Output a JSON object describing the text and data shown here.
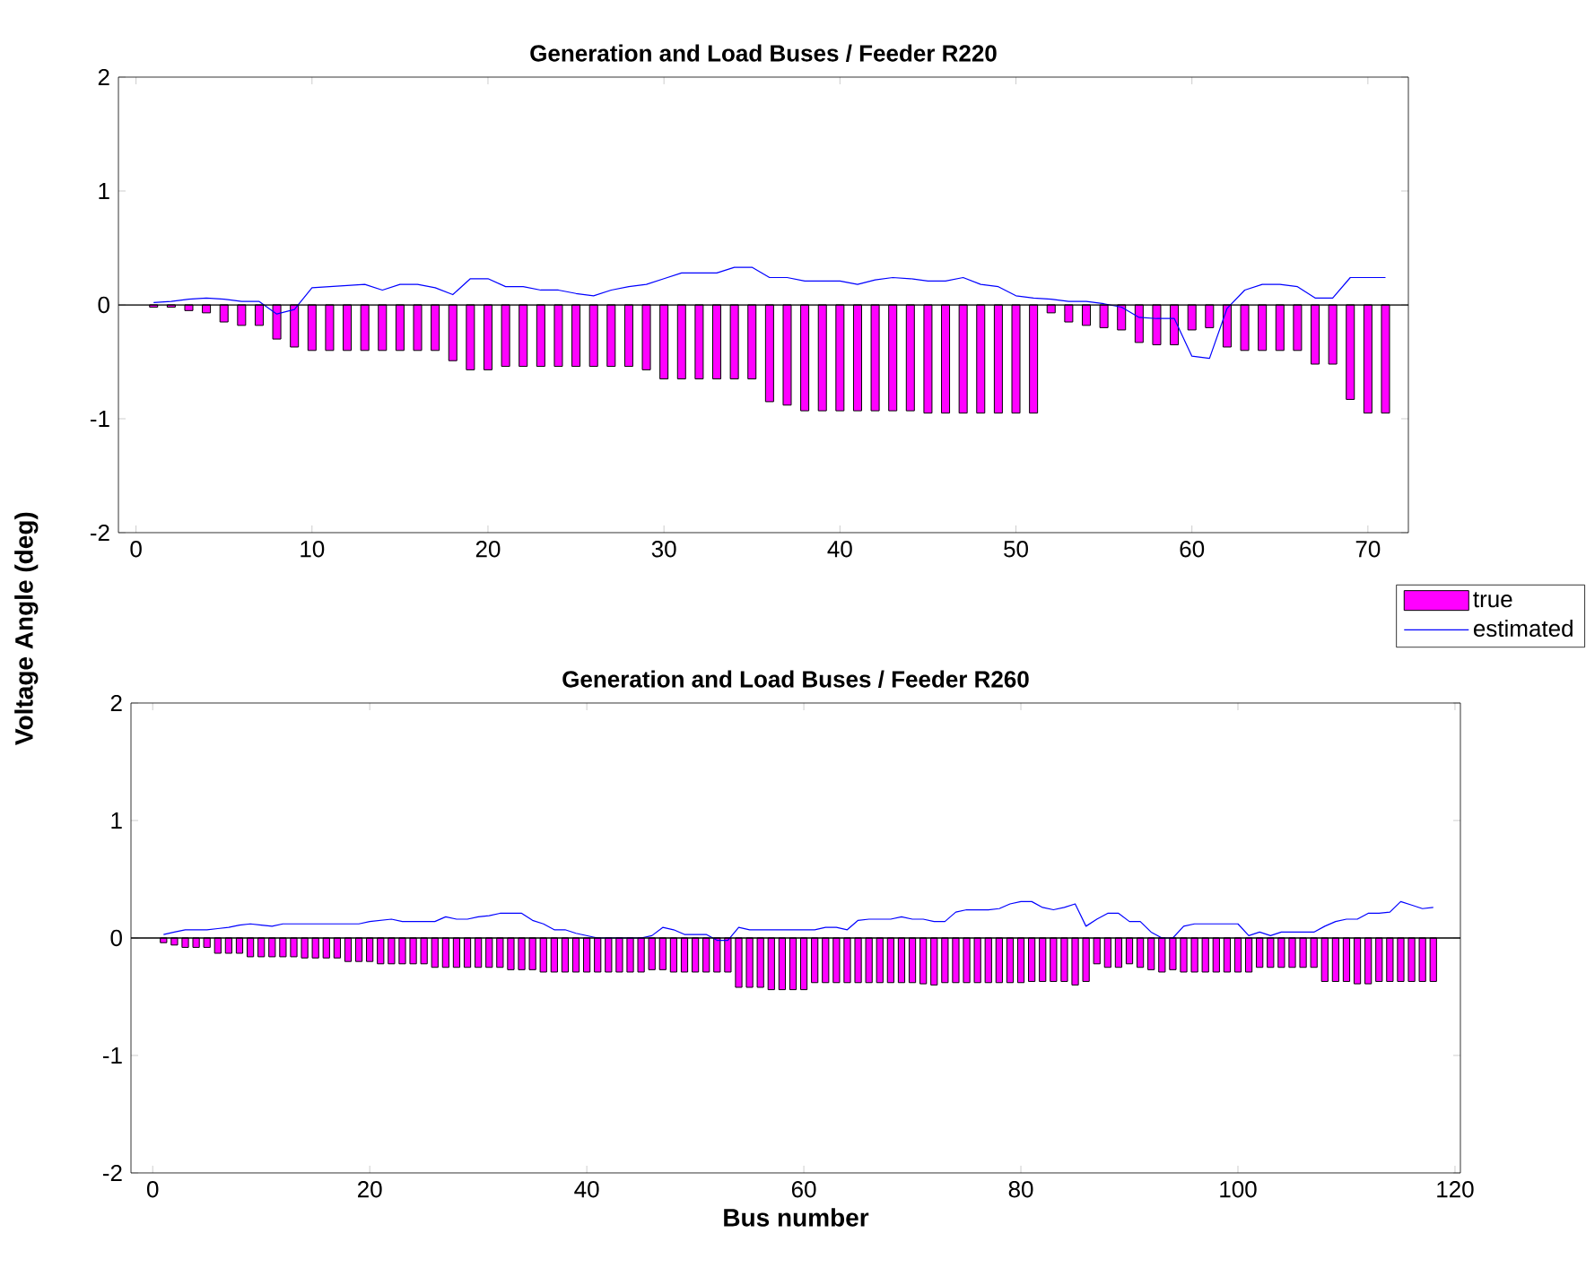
{
  "chart_data": [
    {
      "type": "bar",
      "title": "Generation and Load Buses / Feeder R220",
      "ylabel": "Voltage Angle (deg)",
      "legend": "bottom right",
      "x": [
        1,
        2,
        3,
        4,
        5,
        6,
        7,
        8,
        9,
        10,
        11,
        12,
        13,
        14,
        15,
        16,
        17,
        18,
        19,
        20,
        21,
        22,
        23,
        24,
        25,
        26,
        27,
        28,
        29,
        30,
        31,
        32,
        33,
        34,
        35,
        36,
        37,
        38,
        39,
        40,
        41,
        42,
        43,
        44,
        45,
        46,
        47,
        48,
        49,
        50,
        51,
        52,
        53,
        54,
        55,
        56,
        57,
        58,
        59,
        60,
        61,
        62,
        63,
        64,
        65,
        66,
        67,
        68,
        69,
        70,
        71
      ],
      "xlim": [
        -1,
        72.3
      ],
      "ylim": [
        -2,
        2
      ],
      "xticks": [
        0,
        10,
        20,
        30,
        40,
        50,
        60,
        70
      ],
      "yticks": [
        -2,
        -1,
        0,
        1,
        2
      ],
      "ref_lines": [
        {
          "axis": "y",
          "value": 0,
          "color": "#000000"
        }
      ],
      "series": [
        {
          "name": "true",
          "color": "#ff00ff",
          "values": [
            -0.02,
            -0.02,
            -0.05,
            -0.07,
            -0.15,
            -0.18,
            -0.18,
            -0.3,
            -0.37,
            -0.4,
            -0.4,
            -0.4,
            -0.4,
            -0.4,
            -0.4,
            -0.4,
            -0.4,
            -0.49,
            -0.57,
            -0.57,
            -0.54,
            -0.54,
            -0.54,
            -0.54,
            -0.54,
            -0.54,
            -0.54,
            -0.54,
            -0.57,
            -0.65,
            -0.65,
            -0.65,
            -0.65,
            -0.65,
            -0.65,
            -0.85,
            -0.88,
            -0.93,
            -0.93,
            -0.93,
            -0.93,
            -0.93,
            -0.93,
            -0.93,
            -0.95,
            -0.95,
            -0.95,
            -0.95,
            -0.95,
            -0.95,
            -0.95,
            -0.07,
            -0.15,
            -0.18,
            -0.2,
            -0.22,
            -0.33,
            -0.35,
            -0.35,
            -0.22,
            -0.2,
            -0.37,
            -0.4,
            -0.4,
            -0.4,
            -0.4,
            -0.52,
            -0.52,
            -0.83,
            -0.95,
            -0.95
          ]
        },
        {
          "name": "estimated",
          "type": "line",
          "color": "#0000ff",
          "marker": "none",
          "line_style": "solid",
          "values": [
            0.02,
            0.03,
            0.05,
            0.06,
            0.05,
            0.03,
            0.03,
            -0.08,
            -0.04,
            0.15,
            0.16,
            0.17,
            0.18,
            0.13,
            0.18,
            0.18,
            0.15,
            0.09,
            0.23,
            0.23,
            0.16,
            0.16,
            0.13,
            0.13,
            0.1,
            0.08,
            0.13,
            0.16,
            0.18,
            0.23,
            0.28,
            0.28,
            0.28,
            0.33,
            0.33,
            0.24,
            0.24,
            0.21,
            0.21,
            0.21,
            0.18,
            0.22,
            0.24,
            0.23,
            0.21,
            0.21,
            0.24,
            0.18,
            0.16,
            0.08,
            0.06,
            0.05,
            0.03,
            0.03,
            0.01,
            -0.02,
            -0.11,
            -0.12,
            -0.12,
            -0.45,
            -0.47,
            -0.03,
            0.13,
            0.18,
            0.18,
            0.16,
            0.06,
            0.06,
            0.24,
            0.24,
            0.24
          ]
        }
      ]
    },
    {
      "type": "bar",
      "title": "Generation and Load Buses / Feeder R260",
      "xlabel": "Bus number",
      "x": [
        1,
        2,
        3,
        4,
        5,
        6,
        7,
        8,
        9,
        10,
        11,
        12,
        13,
        14,
        15,
        16,
        17,
        18,
        19,
        20,
        21,
        22,
        23,
        24,
        25,
        26,
        27,
        28,
        29,
        30,
        31,
        32,
        33,
        34,
        35,
        36,
        37,
        38,
        39,
        40,
        41,
        42,
        43,
        44,
        45,
        46,
        47,
        48,
        49,
        50,
        51,
        52,
        53,
        54,
        55,
        56,
        57,
        58,
        59,
        60,
        61,
        62,
        63,
        64,
        65,
        66,
        67,
        68,
        69,
        70,
        71,
        72,
        73,
        74,
        75,
        76,
        77,
        78,
        79,
        80,
        81,
        82,
        83,
        84,
        85,
        86,
        87,
        88,
        89,
        90,
        91,
        92,
        93,
        94,
        95,
        96,
        97,
        98,
        99,
        100,
        101,
        102,
        103,
        104,
        105,
        106,
        107,
        108,
        109,
        110,
        111,
        112,
        113,
        114,
        115,
        116,
        117,
        118
      ],
      "xlim": [
        -2,
        120.5
      ],
      "ylim": [
        -2,
        2
      ],
      "xticks": [
        0,
        20,
        40,
        60,
        80,
        100,
        120
      ],
      "yticks": [
        -2,
        -1,
        0,
        1,
        2
      ],
      "ref_lines": [
        {
          "axis": "y",
          "value": 0,
          "color": "#000000"
        }
      ],
      "series": [
        {
          "color": "#ff00ff",
          "values": [
            -0.04,
            -0.06,
            -0.08,
            -0.08,
            -0.08,
            -0.13,
            -0.13,
            -0.13,
            -0.16,
            -0.16,
            -0.16,
            -0.16,
            -0.16,
            -0.17,
            -0.17,
            -0.17,
            -0.17,
            -0.2,
            -0.2,
            -0.2,
            -0.22,
            -0.22,
            -0.22,
            -0.22,
            -0.22,
            -0.25,
            -0.25,
            -0.25,
            -0.25,
            -0.25,
            -0.25,
            -0.25,
            -0.27,
            -0.27,
            -0.27,
            -0.29,
            -0.29,
            -0.29,
            -0.29,
            -0.29,
            -0.29,
            -0.29,
            -0.29,
            -0.29,
            -0.29,
            -0.27,
            -0.27,
            -0.29,
            -0.29,
            -0.29,
            -0.29,
            -0.29,
            -0.29,
            -0.42,
            -0.42,
            -0.42,
            -0.44,
            -0.44,
            -0.44,
            -0.44,
            -0.38,
            -0.38,
            -0.38,
            -0.38,
            -0.38,
            -0.38,
            -0.38,
            -0.38,
            -0.38,
            -0.38,
            -0.39,
            -0.4,
            -0.38,
            -0.38,
            -0.38,
            -0.38,
            -0.38,
            -0.38,
            -0.38,
            -0.38,
            -0.37,
            -0.37,
            -0.37,
            -0.37,
            -0.4,
            -0.37,
            -0.22,
            -0.25,
            -0.25,
            -0.22,
            -0.25,
            -0.27,
            -0.29,
            -0.27,
            -0.29,
            -0.29,
            -0.29,
            -0.29,
            -0.29,
            -0.29,
            -0.29,
            -0.25,
            -0.25,
            -0.25,
            -0.25,
            -0.25,
            -0.25,
            -0.37,
            -0.37,
            -0.37,
            -0.39,
            -0.39,
            -0.37,
            -0.37,
            -0.37,
            -0.37,
            -0.37,
            -0.37
          ]
        },
        {
          "type": "line",
          "color": "#0000ff",
          "marker": "none",
          "line_style": "solid",
          "values": [
            0.03,
            0.05,
            0.07,
            0.07,
            0.07,
            0.08,
            0.09,
            0.11,
            0.12,
            0.11,
            0.1,
            0.12,
            0.12,
            0.12,
            0.12,
            0.12,
            0.12,
            0.12,
            0.12,
            0.14,
            0.15,
            0.16,
            0.14,
            0.14,
            0.14,
            0.14,
            0.18,
            0.16,
            0.16,
            0.18,
            0.19,
            0.21,
            0.21,
            0.21,
            0.15,
            0.12,
            0.07,
            0.07,
            0.04,
            0.02,
            0,
            0,
            0,
            0,
            0,
            0.02,
            0.09,
            0.07,
            0.03,
            0.03,
            0.03,
            -0.02,
            -0.02,
            0.09,
            0.07,
            0.07,
            0.07,
            0.07,
            0.07,
            0.07,
            0.07,
            0.09,
            0.09,
            0.07,
            0.15,
            0.16,
            0.16,
            0.16,
            0.18,
            0.16,
            0.16,
            0.14,
            0.14,
            0.22,
            0.24,
            0.24,
            0.24,
            0.25,
            0.29,
            0.31,
            0.31,
            0.26,
            0.24,
            0.26,
            0.29,
            0.1,
            0.16,
            0.21,
            0.21,
            0.14,
            0.14,
            0.05,
            0,
            0,
            0.1,
            0.12,
            0.12,
            0.12,
            0.12,
            0.12,
            0.02,
            0.05,
            0.02,
            0.05,
            0.05,
            0.05,
            0.05,
            0.1,
            0.14,
            0.16,
            0.16,
            0.21,
            0.21,
            0.22,
            0.31,
            0.28,
            0.25,
            0.26
          ]
        }
      ]
    }
  ]
}
